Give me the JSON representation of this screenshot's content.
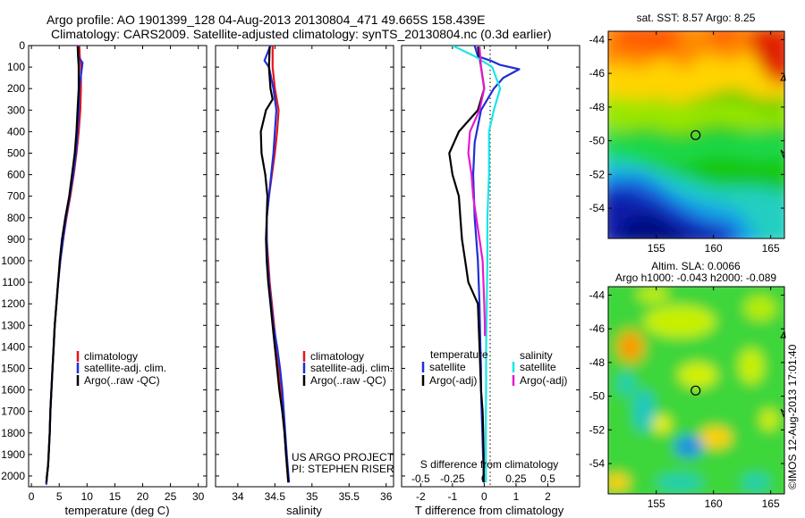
{
  "header": {
    "line1": "Argo profile: AO 1901399_128 04-Aug-2013 20130804_471 49.665S 158.439E",
    "line2": "Climatology: CARS2009. Satellite-adjusted climatology: synTS_20130804.nc (0.3d earlier)"
  },
  "colors": {
    "climatology": "#e8141e",
    "satellite": "#1f2fd6",
    "argo": "#000000",
    "sat_salinity": "#19e6e6",
    "argo_salinity": "#e619d2"
  },
  "chart_data": [
    {
      "id": "temperature",
      "type": "line",
      "xlabel": "temperature (deg C)",
      "ylabel": "",
      "xlim": [
        -0.5,
        31.5
      ],
      "ylim": [
        2050,
        0
      ],
      "xticks": [
        0,
        5,
        10,
        15,
        20,
        25,
        30
      ],
      "yticks": [
        0,
        100,
        200,
        300,
        400,
        500,
        600,
        700,
        800,
        900,
        1000,
        1100,
        1200,
        1300,
        1400,
        1500,
        1600,
        1700,
        1800,
        1900,
        2000
      ],
      "legend": [
        "climatology",
        "satellite-adj. clim.",
        "Argo(..raw -QC)"
      ],
      "legend_position": "lower-center",
      "series": [
        {
          "name": "climatology",
          "color": "#e8141e",
          "x": [
            8.6,
            8.7,
            8.9,
            8.9,
            8.8,
            8.5,
            8.1,
            7.6,
            7.0,
            6.3,
            5.7,
            5.2,
            4.8,
            4.5,
            4.2,
            4.0,
            3.8,
            3.6,
            3.4,
            3.3,
            3.1,
            3.0,
            2.8,
            2.7,
            2.7
          ],
          "y": [
            0,
            50,
            100,
            200,
            300,
            400,
            500,
            600,
            700,
            800,
            900,
            1000,
            1100,
            1200,
            1300,
            1400,
            1500,
            1600,
            1700,
            1800,
            1900,
            1950,
            2000,
            2030,
            2040
          ]
        },
        {
          "name": "satellite-adj. clim.",
          "color": "#1f2fd6",
          "x": [
            8.3,
            8.4,
            9.2,
            8.6,
            8.5,
            8.3,
            8.0,
            7.5,
            6.9,
            6.2,
            5.7,
            5.2,
            4.8,
            4.5,
            4.2,
            4.0,
            3.8,
            3.6,
            3.4,
            3.3,
            3.1,
            3.0,
            2.8,
            2.7,
            2.7
          ],
          "y": [
            0,
            50,
            80,
            200,
            300,
            400,
            500,
            600,
            700,
            800,
            900,
            1000,
            1100,
            1200,
            1300,
            1400,
            1500,
            1600,
            1700,
            1800,
            1900,
            1950,
            2000,
            2030,
            2040
          ]
        },
        {
          "name": "Argo(..raw -QC)",
          "color": "#000000",
          "x": [
            8.4,
            8.4,
            8.5,
            8.5,
            8.3,
            8.1,
            7.8,
            7.3,
            6.8,
            6.1,
            5.5,
            5.1,
            4.8,
            4.5,
            4.2,
            4.0,
            3.8,
            3.6,
            3.4,
            3.3,
            3.1,
            3.0,
            2.8,
            2.7
          ],
          "y": [
            5,
            50,
            100,
            200,
            300,
            400,
            500,
            600,
            700,
            800,
            900,
            1000,
            1100,
            1200,
            1300,
            1400,
            1500,
            1600,
            1700,
            1800,
            1900,
            1950,
            2000,
            2030
          ]
        }
      ]
    },
    {
      "id": "salinity",
      "type": "line",
      "xlabel": "salinity",
      "ylabel": "",
      "xlim": [
        33.7,
        36.1
      ],
      "ylim": [
        2050,
        0
      ],
      "xticks": [
        34,
        34.5,
        35,
        35.5,
        36
      ],
      "xtick_labels": [
        "34",
        "34.5",
        "35",
        "35.5",
        "36"
      ],
      "legend": [
        "climatology",
        "satellite-adj. clim.",
        "Argo(..raw -QC)"
      ],
      "legend_position": "lower-center",
      "annotation": [
        "US ARGO PROJECT",
        "PI: STEPHEN RISER"
      ],
      "series": [
        {
          "name": "climatology",
          "color": "#e8141e",
          "x": [
            34.47,
            34.47,
            34.47,
            34.5,
            34.55,
            34.53,
            34.5,
            34.46,
            34.42,
            34.39,
            34.39,
            34.41,
            34.43,
            34.46,
            34.49,
            34.52,
            34.55,
            34.58,
            34.61,
            34.63,
            34.65,
            34.68
          ],
          "y": [
            0,
            50,
            100,
            200,
            300,
            400,
            500,
            600,
            700,
            800,
            900,
            1000,
            1100,
            1200,
            1300,
            1400,
            1500,
            1600,
            1700,
            1800,
            1900,
            2030
          ]
        },
        {
          "name": "satellite-adj. clim.",
          "color": "#1f2fd6",
          "x": [
            34.44,
            34.36,
            34.42,
            34.48,
            34.52,
            34.5,
            34.48,
            34.45,
            34.42,
            34.39,
            34.39,
            34.4,
            34.42,
            34.45,
            34.48,
            34.53,
            34.57,
            34.6,
            34.62,
            34.64,
            34.66,
            34.69
          ],
          "y": [
            0,
            70,
            100,
            200,
            300,
            400,
            500,
            600,
            700,
            800,
            900,
            1000,
            1100,
            1200,
            1300,
            1400,
            1500,
            1600,
            1700,
            1800,
            1900,
            2030
          ]
        },
        {
          "name": "Argo(..raw -QC)",
          "color": "#000000",
          "x": [
            34.43,
            34.42,
            34.44,
            34.47,
            34.38,
            34.31,
            34.32,
            34.37,
            34.4,
            34.39,
            34.38,
            34.39,
            34.41,
            34.44,
            34.47,
            34.5,
            34.53,
            34.56,
            34.6,
            34.63,
            34.65,
            34.68
          ],
          "y": [
            5,
            100,
            200,
            250,
            300,
            400,
            500,
            600,
            700,
            800,
            900,
            1000,
            1100,
            1200,
            1300,
            1400,
            1500,
            1600,
            1700,
            1800,
            1900,
            2030
          ]
        }
      ]
    },
    {
      "id": "difference",
      "type": "line",
      "xlabel": "T difference from climatology",
      "xlabel_top": "S difference from climatology",
      "xlim": [
        -2.6,
        3.0
      ],
      "ylim": [
        2050,
        0
      ],
      "xticks": [
        -2,
        -1,
        0,
        1,
        2
      ],
      "top_ticks": [
        -0.5,
        -0.25,
        0,
        0.25,
        0.5
      ],
      "top_tick_labels": [
        "-0.5",
        "-0.25",
        "0",
        "0.25",
        "0.5"
      ],
      "legend": {
        "temperature_title": "temperature",
        "salinity_title": "salinity",
        "temperature": [
          "satellite",
          "Argo(-adj)"
        ],
        "salinity": [
          "satellite",
          "Argo(-adj)"
        ]
      },
      "series": [
        {
          "name": "T satellite",
          "color": "#1f2fd6",
          "x": [
            -0.3,
            -0.2,
            0.2,
            0.5,
            1.1,
            0.6,
            0.3,
            -0.1,
            -0.3,
            -0.35,
            -0.3,
            -0.2,
            -0.15,
            -0.12,
            -0.1,
            -0.1,
            -0.08,
            -0.06,
            -0.04,
            -0.02,
            -0.02,
            -0.02
          ],
          "y": [
            0,
            50,
            70,
            90,
            110,
            150,
            200,
            300,
            450,
            600,
            800,
            1000,
            1200,
            1400,
            1500,
            1600,
            1700,
            1800,
            1900,
            1950,
            2000,
            2030
          ]
        },
        {
          "name": "T Argo(-adj)",
          "color": "#000000",
          "x": [
            -0.2,
            -0.1,
            0,
            -0.2,
            -0.8,
            -1.1,
            -1.0,
            -0.8,
            -0.75,
            -0.7,
            -0.6,
            -0.5,
            -0.2,
            -0.15,
            -0.1,
            -0.05,
            -0.03,
            -0.02,
            -0.02
          ],
          "y": [
            5,
            100,
            200,
            300,
            400,
            500,
            600,
            700,
            800,
            900,
            1000,
            1100,
            1200,
            1400,
            1600,
            1700,
            1800,
            1900,
            2030
          ]
        },
        {
          "name": "S satellite",
          "color": "#19e6e6",
          "x": [
            -1.0,
            -0.3,
            0.25,
            0.5,
            0.3,
            0.15,
            0.15,
            0.15,
            0.1,
            0.1,
            0.08,
            0.07,
            0.06,
            0.06,
            0.05,
            0.05,
            0.05,
            0.05
          ],
          "y": [
            0,
            50,
            100,
            200,
            300,
            400,
            500,
            600,
            800,
            1000,
            1200,
            1300,
            1400,
            1600,
            1700,
            1800,
            1900,
            2030
          ]
        },
        {
          "name": "S Argo(-adj)",
          "color": "#e619d2",
          "x": [
            -0.15,
            -0.1,
            0,
            -0.15,
            -0.45,
            -0.5,
            -0.4,
            -0.35,
            -0.25,
            -0.15,
            -0.05,
            0,
            0.02,
            0.02
          ],
          "y": [
            5,
            100,
            200,
            300,
            400,
            500,
            600,
            700,
            800,
            900,
            1000,
            1200,
            1300,
            1350
          ]
        }
      ]
    },
    {
      "id": "sst-map",
      "type": "heatmap",
      "title": "sat. SST: 8.57 Argo: 8.25",
      "xlim": [
        150.8,
        166.2
      ],
      "ylim": [
        -55.8,
        -43.5
      ],
      "xticks": [
        155,
        160,
        165
      ],
      "yticks": [
        -44,
        -46,
        -48,
        -50,
        -52,
        -54
      ],
      "marker": {
        "lon": 158.439,
        "lat": -49.665
      }
    },
    {
      "id": "sla-map",
      "type": "heatmap",
      "title": [
        "Altim. SLA: 0.0066",
        "Argo h1000: -0.043 h2000: -0.089"
      ],
      "xlim": [
        150.8,
        166.2
      ],
      "ylim": [
        -55.8,
        -43.5
      ],
      "xticks": [
        155,
        160,
        165
      ],
      "yticks": [
        -44,
        -46,
        -48,
        -50,
        -52,
        -54
      ],
      "marker": {
        "lon": 158.439,
        "lat": -49.665
      },
      "side_label": "©IMOS 12-Aug-2013 17:01:40"
    }
  ]
}
